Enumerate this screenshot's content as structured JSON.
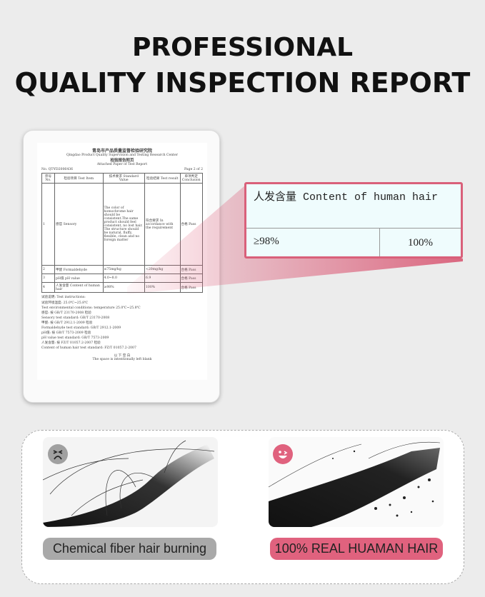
{
  "header": {
    "line1": "PROFESSIONAL",
    "line2": "QUALITY INSPECTION REPORT"
  },
  "report": {
    "org_cn": "青岛市产品质量监督检验研究院",
    "org_en": "Qingdao Product Quality Supervision and Testing Research Center",
    "doc_cn": "检验报告附页",
    "doc_en": "Attached Paper of Test Report",
    "number": "No. QT-YD2006436",
    "page": "Page 2 of 2",
    "columns": [
      "序号 No.",
      "检验项目 Test Item",
      "技术要求 Standard Value",
      "检验结果 Test result",
      "单项判定 Conclusion"
    ],
    "rows": [
      [
        "1",
        "感官 Sensory",
        "The color of homochrome hair should be consistent.The same product should feel consistent, no lost hair. The structure should be natural, fluffy, flexible, clean and no foreign matter",
        "符合要求 In accordance with the requirement",
        "合格 Pass"
      ],
      [
        "2",
        "甲醛 Formaldehyde",
        "≤75mg/kg",
        "<20mg/kg",
        "合格 Pass"
      ],
      [
        "3",
        "pH值 pH value",
        "4.0~8.0",
        "6.9",
        "合格 Pass"
      ],
      [
        "4",
        "人发含量 Content of human hair",
        "≥98%",
        "100%",
        "合格 Pass"
      ]
    ],
    "notes_title": "试验说明: Test instructions:",
    "notes": [
      "试验环境温度: 25.0℃~25.8℃",
      "Test environmental conditions: temperature 25.0℃~25.8℃",
      "感官: 按 GB/T 23170-2008 检验",
      "Sensory test standard: GB/T 23170-2008",
      "甲醛: 按 GB/T 2912.1-2009 检验",
      "Formaldehyde test standard: GB/T 2912.1-2009",
      "pH值: 按 GB/T 7573-2009 检验",
      "pH value test standard: GB/T 7573-2009",
      "人发含量: 按 FZ/T 01057.2-2007 检验",
      "Content of human hair test standard: FZ/T 01057.2-2007"
    ],
    "blank_cn": "以 下 空 白",
    "blank_en": "The space is intentionally left blank"
  },
  "callout": {
    "item": "人发含量  Content of human hair",
    "standard": "≥98%",
    "result": "100%"
  },
  "accent_pink": "#e0627e",
  "comparison": {
    "left": {
      "icon": "sad-face-icon",
      "label": "Chemical fiber hair burning"
    },
    "right": {
      "icon": "happy-wink-face-icon",
      "label": "100% REAL HUAMAN HAIR"
    }
  }
}
